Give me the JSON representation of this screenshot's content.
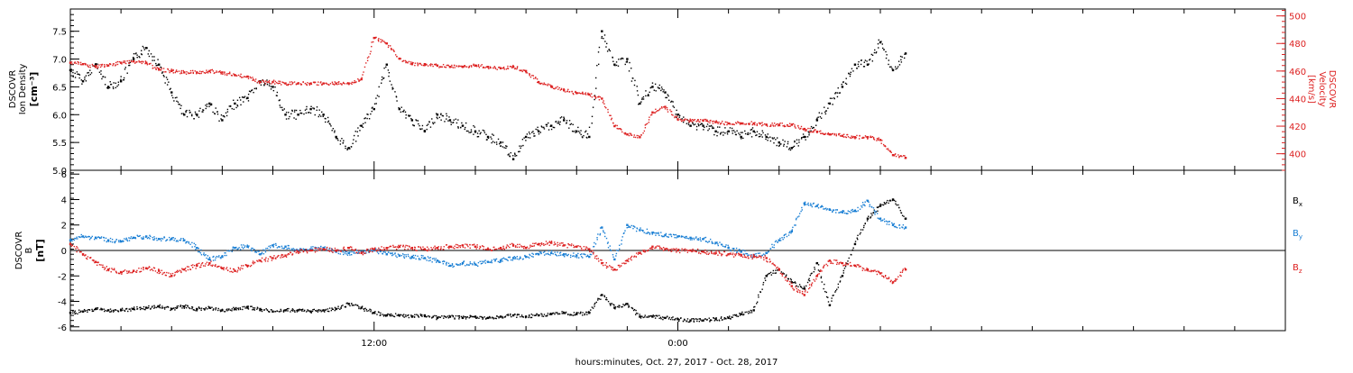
{
  "colors": {
    "axis": "#000000",
    "ion_density": "#000000",
    "velocity": "#dd2222",
    "bx": "#000000",
    "by": "#1a7fd4",
    "bz": "#dd2222"
  },
  "xaxis": {
    "label": "hours:minutes, Oct. 27, 2017 - Oct. 28, 2017",
    "range_hours": [
      0,
      48
    ],
    "major_ticks": [
      {
        "hour": 12,
        "label": "12:00"
      },
      {
        "hour": 24,
        "label": "0:00"
      }
    ],
    "minor_tick_step_hours": 2
  },
  "chart_data": [
    {
      "type": "scatter",
      "panel": "plasma",
      "left_axis": {
        "label_line1": "DSCOVR",
        "label_line2": "Ion Density",
        "label_unit": "[cm⁻³]",
        "ylim": [
          5.0,
          7.9
        ],
        "ticks": [
          5.0,
          5.5,
          6.0,
          6.5,
          7.0,
          7.5
        ],
        "tick_labels": [
          "5.0",
          "5.5",
          "6.0",
          "6.5",
          "7.0",
          "7.5"
        ]
      },
      "right_axis": {
        "label_line1": "DSCOVR",
        "label_line2": "Velocity",
        "label_unit": "[km/s]",
        "ylim": [
          388,
          505
        ],
        "ticks": [
          400,
          420,
          440,
          460,
          480,
          500
        ],
        "tick_labels": [
          "400",
          "420",
          "440",
          "460",
          "480",
          "500"
        ]
      },
      "series": [
        {
          "key": "density",
          "axis": "left",
          "x": [
            0,
            0.5,
            1,
            1.5,
            2,
            2.5,
            3,
            3.5,
            4,
            4.5,
            5,
            5.5,
            6,
            6.5,
            7,
            7.5,
            8,
            8.5,
            9,
            9.5,
            10,
            10.5,
            11,
            11.5,
            12,
            12.5,
            13,
            13.5,
            14,
            14.5,
            15,
            15.5,
            16,
            16.5,
            17,
            17.5,
            18,
            18.5,
            19,
            19.5,
            20,
            20.5,
            21,
            21.5,
            22,
            22.5,
            23,
            23.5,
            24,
            24.5,
            25,
            25.5,
            26,
            26.5,
            27,
            27.5,
            28,
            28.5,
            29,
            29.5,
            30,
            30.5,
            31,
            31.5,
            32,
            32.5,
            33
          ],
          "values": [
            6.8,
            6.6,
            6.9,
            6.5,
            6.6,
            7.0,
            7.2,
            6.9,
            6.4,
            6.0,
            6.0,
            6.2,
            5.9,
            6.2,
            6.3,
            6.6,
            6.5,
            6.0,
            6.0,
            6.1,
            6.0,
            5.6,
            5.4,
            5.8,
            6.1,
            6.9,
            6.1,
            5.9,
            5.7,
            6.0,
            5.9,
            5.8,
            5.7,
            5.6,
            5.5,
            5.2,
            5.6,
            5.7,
            5.8,
            5.9,
            5.7,
            5.6,
            7.5,
            6.9,
            7.0,
            6.2,
            6.5,
            6.4,
            6.0,
            5.8,
            5.8,
            5.7,
            5.7,
            5.6,
            5.7,
            5.6,
            5.5,
            5.4,
            5.6,
            5.9,
            6.2,
            6.5,
            6.9,
            6.9,
            7.3,
            6.8,
            7.1
          ]
        },
        {
          "key": "velocity",
          "axis": "right",
          "x": [
            0,
            0.5,
            1,
            1.5,
            2,
            2.5,
            3,
            3.5,
            4,
            4.5,
            5,
            5.5,
            6,
            6.5,
            7,
            7.5,
            8,
            8.5,
            9,
            9.5,
            10,
            10.5,
            11,
            11.5,
            12,
            12.5,
            13,
            13.5,
            14,
            14.5,
            15,
            15.5,
            16,
            16.5,
            17,
            17.5,
            18,
            18.5,
            19,
            19.5,
            20,
            20.5,
            21,
            21.5,
            22,
            22.5,
            23,
            23.5,
            24,
            24.5,
            25,
            25.5,
            26,
            26.5,
            27,
            27.5,
            28,
            28.5,
            29,
            29.5,
            30,
            30.5,
            31,
            31.5,
            32,
            32.5,
            33
          ],
          "values": [
            466,
            465,
            463,
            464,
            466,
            467,
            466,
            461,
            460,
            459,
            459,
            460,
            459,
            457,
            456,
            452,
            452,
            451,
            451,
            451,
            451,
            451,
            451,
            454,
            484,
            480,
            469,
            465,
            465,
            464,
            463,
            463,
            464,
            463,
            462,
            463,
            460,
            452,
            449,
            446,
            444,
            443,
            440,
            420,
            414,
            412,
            430,
            434,
            425,
            424,
            424,
            423,
            422,
            422,
            422,
            421,
            421,
            421,
            418,
            416,
            414,
            413,
            412,
            412,
            410,
            399,
            397
          ]
        }
      ]
    },
    {
      "type": "scatter",
      "panel": "magnetic",
      "left_axis": {
        "label_line1": "DSCOVR",
        "label_line2": "B",
        "label_unit": "[nT]",
        "ylim": [
          -6.3,
          6.3
        ],
        "ticks": [
          -6,
          -4,
          -2,
          0,
          2,
          4,
          6
        ],
        "tick_labels": [
          "-6",
          "-4",
          "-2",
          "0",
          "2",
          "4",
          "6"
        ]
      },
      "series": [
        {
          "key": "bx",
          "name": "Bx",
          "x": [
            0,
            0.5,
            1,
            1.5,
            2,
            2.5,
            3,
            3.5,
            4,
            4.5,
            5,
            5.5,
            6,
            6.5,
            7,
            7.5,
            8,
            8.5,
            9,
            9.5,
            10,
            10.5,
            11,
            11.5,
            12,
            12.5,
            13,
            13.5,
            14,
            14.5,
            15,
            15.5,
            16,
            16.5,
            17,
            17.5,
            18,
            18.5,
            19,
            19.5,
            20,
            20.5,
            21,
            21.5,
            22,
            22.5,
            23,
            23.5,
            24,
            24.5,
            25,
            25.5,
            26,
            26.5,
            27,
            27.5,
            28,
            28.5,
            29,
            29.5,
            30,
            30.5,
            31,
            31.5,
            32,
            32.5,
            33
          ],
          "values": [
            -4.9,
            -4.8,
            -4.6,
            -4.7,
            -4.7,
            -4.6,
            -4.5,
            -4.4,
            -4.6,
            -4.4,
            -4.6,
            -4.5,
            -4.7,
            -4.6,
            -4.5,
            -4.6,
            -4.8,
            -4.7,
            -4.7,
            -4.8,
            -4.7,
            -4.6,
            -4.2,
            -4.5,
            -4.9,
            -5.1,
            -5.1,
            -5.2,
            -5.1,
            -5.3,
            -5.2,
            -5.3,
            -5.2,
            -5.3,
            -5.2,
            -5.1,
            -5.2,
            -5.1,
            -5.0,
            -4.9,
            -5.0,
            -4.9,
            -3.5,
            -4.5,
            -4.2,
            -5.2,
            -5.2,
            -5.3,
            -5.4,
            -5.5,
            -5.5,
            -5.4,
            -5.3,
            -5.0,
            -4.7,
            -2.0,
            -1.5,
            -2.5,
            -3.0,
            -1.0,
            -4.3,
            -2.0,
            0.5,
            2.5,
            3.5,
            4.0,
            2.5
          ]
        },
        {
          "key": "by",
          "name": "By",
          "x": [
            0,
            0.5,
            1,
            1.5,
            2,
            2.5,
            3,
            3.5,
            4,
            4.5,
            5,
            5.5,
            6,
            6.5,
            7,
            7.5,
            8,
            8.5,
            9,
            9.5,
            10,
            10.5,
            11,
            11.5,
            12,
            12.5,
            13,
            13.5,
            14,
            14.5,
            15,
            15.5,
            16,
            16.5,
            17,
            17.5,
            18,
            18.5,
            19,
            19.5,
            20,
            20.5,
            21,
            21.5,
            22,
            22.5,
            23,
            23.5,
            24,
            24.5,
            25,
            25.5,
            26,
            26.5,
            27,
            27.5,
            28,
            28.5,
            29,
            29.5,
            30,
            30.5,
            31,
            31.5,
            32,
            32.5,
            33
          ],
          "values": [
            0.8,
            1.1,
            1.0,
            0.8,
            0.7,
            1.0,
            1.1,
            0.9,
            0.9,
            0.8,
            0.2,
            -0.7,
            -0.5,
            0.2,
            0.3,
            -0.3,
            0.4,
            0.3,
            0.0,
            0.1,
            0.2,
            -0.1,
            -0.2,
            -0.1,
            0.0,
            -0.3,
            -0.4,
            -0.5,
            -0.6,
            -0.8,
            -1.2,
            -1.0,
            -1.1,
            -0.9,
            -0.8,
            -0.6,
            -0.5,
            -0.3,
            -0.2,
            -0.3,
            -0.4,
            -0.5,
            1.8,
            -0.7,
            2.0,
            1.6,
            1.4,
            1.2,
            1.1,
            1.0,
            0.9,
            0.6,
            0.2,
            -0.1,
            -0.4,
            -0.2,
            0.8,
            1.5,
            3.7,
            3.5,
            3.2,
            3.0,
            3.1,
            3.9,
            2.5,
            2.0,
            1.8
          ]
        },
        {
          "key": "bz",
          "name": "Bz",
          "x": [
            0,
            0.5,
            1,
            1.5,
            2,
            2.5,
            3,
            3.5,
            4,
            4.5,
            5,
            5.5,
            6,
            6.5,
            7,
            7.5,
            8,
            8.5,
            9,
            9.5,
            10,
            10.5,
            11,
            11.5,
            12,
            12.5,
            13,
            13.5,
            14,
            14.5,
            15,
            15.5,
            16,
            16.5,
            17,
            17.5,
            18,
            18.5,
            19,
            19.5,
            20,
            20.5,
            21,
            21.5,
            22,
            22.5,
            23,
            23.5,
            24,
            24.5,
            25,
            25.5,
            26,
            26.5,
            27,
            27.5,
            28,
            28.5,
            29,
            29.5,
            30,
            30.5,
            31,
            31.5,
            32,
            32.5,
            33
          ],
          "values": [
            0.5,
            -0.3,
            -0.9,
            -1.5,
            -1.7,
            -1.6,
            -1.4,
            -1.6,
            -2.0,
            -1.5,
            -1.2,
            -1.0,
            -1.4,
            -1.6,
            -1.2,
            -0.8,
            -0.6,
            -0.4,
            -0.1,
            0.0,
            0.1,
            0.0,
            0.2,
            -0.2,
            0.1,
            0.2,
            0.3,
            0.2,
            0.1,
            0.2,
            0.3,
            0.4,
            0.3,
            0.1,
            0.2,
            0.4,
            0.2,
            0.5,
            0.6,
            0.4,
            0.3,
            0.1,
            -1.0,
            -1.5,
            -0.8,
            -0.2,
            0.3,
            0.1,
            0.0,
            0.0,
            -0.1,
            -0.2,
            -0.3,
            -0.4,
            -0.5,
            -0.6,
            -1.5,
            -2.8,
            -3.5,
            -2.0,
            -0.8,
            -1.0,
            -1.2,
            -1.5,
            -1.8,
            -2.5,
            -1.5
          ]
        }
      ]
    }
  ]
}
